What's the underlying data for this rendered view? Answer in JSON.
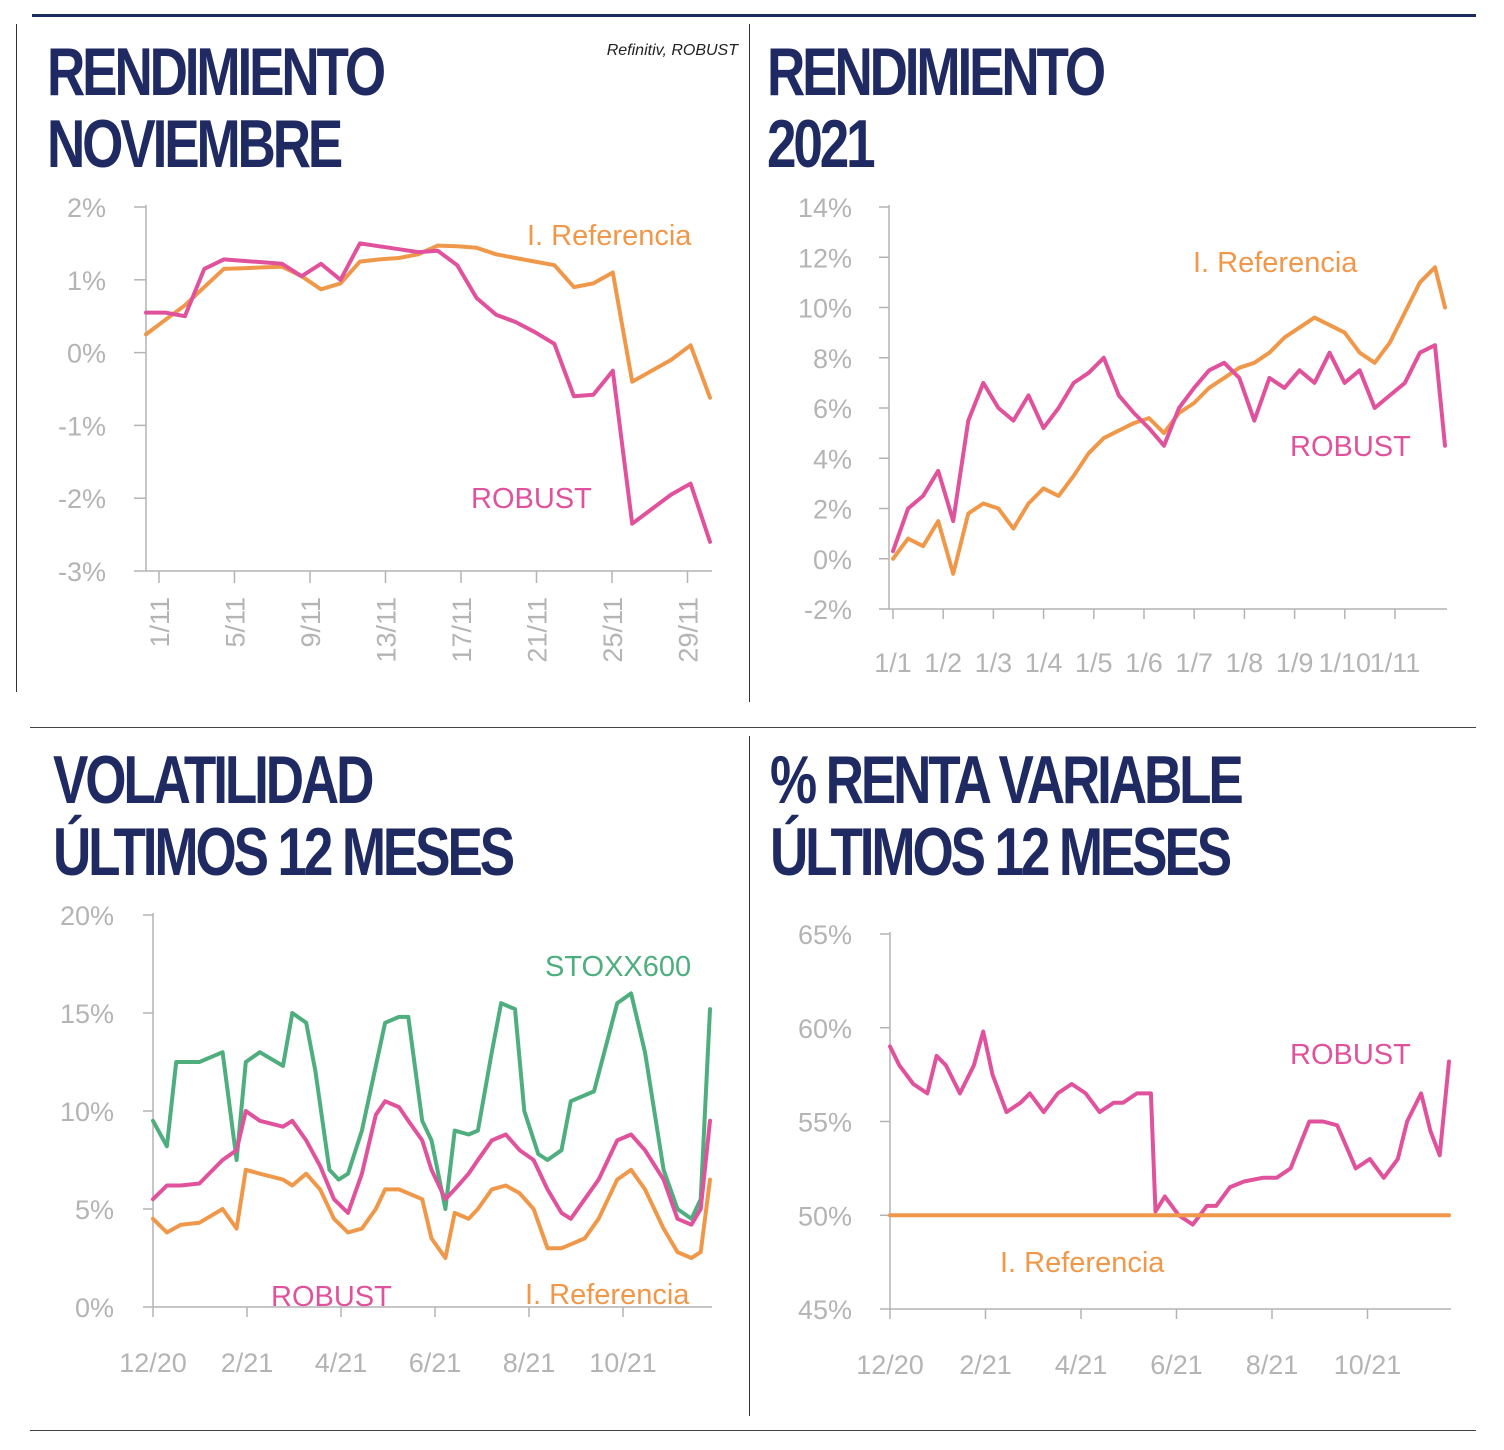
{
  "source": "Refinitiv, ROBUST",
  "colors": {
    "robust": "#e0529c",
    "referencia": "#f0984a",
    "stoxx": "#4fae7e",
    "title": "#1f2a63",
    "axis": "#b4b4b4"
  },
  "panels": [
    {
      "title_lines": [
        "RENDIMIENTO",
        "NOVIEMBRE"
      ]
    },
    {
      "title_lines": [
        "RENDIMIENTO",
        "2021"
      ]
    },
    {
      "title_lines": [
        "VOLATILIDAD",
        "ÚLTIMOS 12 MESES"
      ]
    },
    {
      "title_lines": [
        "% RENTA VARIABLE",
        "ÚLTIMOS 12 MESES"
      ]
    }
  ],
  "chart_data": [
    {
      "type": "line",
      "title": "RENDIMIENTO NOVIEMBRE",
      "x_ticks": [
        "1/11",
        "5/11",
        "9/11",
        "13/11",
        "17/11",
        "21/11",
        "25/11",
        "29/11"
      ],
      "y_ticks": [
        "2%",
        "1%",
        "0%",
        "-1%",
        "-2%",
        "-3%"
      ],
      "ylim": [
        -3,
        2
      ],
      "xlim": [
        1,
        30
      ],
      "series": [
        {
          "name": "I. Referencia",
          "x": [
            1,
            2,
            3,
            4,
            5,
            6,
            7,
            8,
            9,
            10,
            11,
            12,
            13,
            14,
            15,
            16,
            17,
            18,
            19,
            20,
            21,
            22,
            23,
            24,
            25,
            26,
            27,
            28,
            29,
            30
          ],
          "values": [
            0.25,
            0.45,
            0.65,
            0.9,
            1.15,
            1.16,
            1.17,
            1.18,
            1.05,
            0.87,
            0.95,
            1.25,
            1.28,
            1.3,
            1.35,
            1.47,
            1.46,
            1.44,
            1.35,
            1.3,
            1.25,
            1.2,
            0.9,
            0.95,
            1.1,
            -0.4,
            -0.25,
            -0.1,
            0.1,
            -0.62
          ]
        },
        {
          "name": "ROBUST",
          "x": [
            1,
            2,
            3,
            4,
            5,
            6,
            7,
            8,
            9,
            10,
            11,
            12,
            13,
            14,
            15,
            16,
            17,
            18,
            19,
            20,
            21,
            22,
            23,
            24,
            25,
            26,
            27,
            28,
            29,
            30
          ],
          "values": [
            0.55,
            0.55,
            0.5,
            1.15,
            1.28,
            1.26,
            1.24,
            1.22,
            1.05,
            1.22,
            1.0,
            1.5,
            1.46,
            1.42,
            1.38,
            1.4,
            1.2,
            0.75,
            0.52,
            0.42,
            0.28,
            0.12,
            -0.6,
            -0.58,
            -0.25,
            -2.35,
            -2.15,
            -1.95,
            -1.8,
            -2.6
          ]
        }
      ]
    },
    {
      "type": "line",
      "title": "RENDIMIENTO 2021",
      "x_ticks": [
        "1/1",
        "1/2",
        "1/3",
        "1/4",
        "1/5",
        "1/6",
        "1/7",
        "1/8",
        "1/9",
        "1/10",
        "1/11"
      ],
      "y_ticks": [
        "14%",
        "12%",
        "10%",
        "8%",
        "6%",
        "4%",
        "2%",
        "0%",
        "-2%"
      ],
      "ylim": [
        -2,
        14
      ],
      "xlim": [
        0,
        11
      ],
      "series": [
        {
          "name": "I. Referencia",
          "x": [
            0,
            0.3,
            0.6,
            0.9,
            1.2,
            1.5,
            1.8,
            2.1,
            2.4,
            2.7,
            3.0,
            3.3,
            3.6,
            3.9,
            4.2,
            4.5,
            4.8,
            5.1,
            5.4,
            5.7,
            6.0,
            6.3,
            6.6,
            6.9,
            7.2,
            7.5,
            7.8,
            8.1,
            8.4,
            8.7,
            9.0,
            9.3,
            9.6,
            9.9,
            10.2,
            10.5,
            10.8,
            11.0
          ],
          "values": [
            0,
            0.8,
            0.5,
            1.5,
            -0.6,
            1.8,
            2.2,
            2.0,
            1.2,
            2.2,
            2.8,
            2.5,
            3.3,
            4.2,
            4.8,
            5.1,
            5.4,
            5.6,
            5.0,
            5.8,
            6.2,
            6.8,
            7.2,
            7.6,
            7.8,
            8.2,
            8.8,
            9.2,
            9.6,
            9.3,
            9.0,
            8.2,
            7.8,
            8.6,
            9.8,
            11.0,
            11.6,
            10.0
          ]
        },
        {
          "name": "ROBUST",
          "x": [
            0,
            0.3,
            0.6,
            0.9,
            1.2,
            1.5,
            1.8,
            2.1,
            2.4,
            2.7,
            3.0,
            3.3,
            3.6,
            3.9,
            4.2,
            4.5,
            4.8,
            5.1,
            5.4,
            5.7,
            6.0,
            6.3,
            6.6,
            6.9,
            7.2,
            7.5,
            7.8,
            8.1,
            8.4,
            8.7,
            9.0,
            9.3,
            9.6,
            9.9,
            10.2,
            10.5,
            10.8,
            11.0
          ],
          "values": [
            0.3,
            2.0,
            2.5,
            3.5,
            1.5,
            5.5,
            7.0,
            6.0,
            5.5,
            6.5,
            5.2,
            6.0,
            7.0,
            7.4,
            8.0,
            6.5,
            5.8,
            5.2,
            4.5,
            6.0,
            6.8,
            7.5,
            7.8,
            7.2,
            5.5,
            7.2,
            6.8,
            7.5,
            7.0,
            8.2,
            7.0,
            7.5,
            6.0,
            6.5,
            7.0,
            8.2,
            8.5,
            4.5
          ]
        }
      ]
    },
    {
      "type": "line",
      "title": "VOLATILIDAD ÚLTIMOS 12 MESES",
      "x_ticks": [
        "12/20",
        "2/21",
        "4/21",
        "6/21",
        "8/21",
        "10/21"
      ],
      "y_ticks": [
        "20%",
        "15%",
        "10%",
        "5%",
        "0%"
      ],
      "ylim": [
        0,
        20
      ],
      "xlim": [
        0,
        12
      ],
      "series": [
        {
          "name": "STOXX600",
          "x": [
            0,
            0.3,
            0.5,
            1.0,
            1.5,
            1.8,
            2.0,
            2.3,
            2.8,
            3.0,
            3.3,
            3.5,
            3.8,
            4.0,
            4.2,
            4.5,
            5.0,
            5.3,
            5.5,
            5.8,
            6.0,
            6.3,
            6.5,
            6.8,
            7.0,
            7.3,
            7.5,
            7.8,
            8.0,
            8.3,
            8.5,
            8.8,
            9.0,
            9.5,
            10.0,
            10.3,
            10.6,
            11.0,
            11.3,
            11.6,
            11.8,
            12.0
          ],
          "values": [
            9.5,
            8.2,
            12.5,
            12.5,
            13.0,
            7.5,
            12.5,
            13.0,
            12.3,
            15.0,
            14.5,
            12.0,
            7.0,
            6.5,
            6.8,
            9.0,
            14.5,
            14.8,
            14.8,
            9.5,
            8.5,
            5.0,
            9.0,
            8.8,
            9.0,
            13.0,
            15.5,
            15.2,
            10.0,
            7.8,
            7.5,
            8.0,
            10.5,
            11.0,
            15.5,
            16.0,
            13.0,
            7.0,
            5.0,
            4.5,
            5.5,
            15.2
          ]
        },
        {
          "name": "ROBUST",
          "x": [
            0,
            0.3,
            0.6,
            1.0,
            1.5,
            1.8,
            2.0,
            2.3,
            2.8,
            3.0,
            3.3,
            3.6,
            3.9,
            4.2,
            4.5,
            4.8,
            5.0,
            5.3,
            5.5,
            5.8,
            6.0,
            6.3,
            6.5,
            6.8,
            7.0,
            7.3,
            7.6,
            7.9,
            8.2,
            8.5,
            8.8,
            9.0,
            9.3,
            9.6,
            10.0,
            10.3,
            10.6,
            11.0,
            11.3,
            11.6,
            11.8,
            12.0
          ],
          "values": [
            5.5,
            6.2,
            6.2,
            6.3,
            7.5,
            8.0,
            10.0,
            9.5,
            9.2,
            9.5,
            8.5,
            7.2,
            5.5,
            4.8,
            6.8,
            9.8,
            10.5,
            10.2,
            9.5,
            8.5,
            7.0,
            5.5,
            6.0,
            6.8,
            7.5,
            8.5,
            8.8,
            8.0,
            7.5,
            6.0,
            4.8,
            4.5,
            5.5,
            6.5,
            8.5,
            8.8,
            8.0,
            6.5,
            4.5,
            4.2,
            5.0,
            9.5
          ]
        },
        {
          "name": "I. Referencia",
          "x": [
            0,
            0.3,
            0.6,
            1.0,
            1.5,
            1.8,
            2.0,
            2.3,
            2.8,
            3.0,
            3.3,
            3.6,
            3.9,
            4.2,
            4.5,
            4.8,
            5.0,
            5.3,
            5.5,
            5.8,
            6.0,
            6.3,
            6.5,
            6.8,
            7.0,
            7.3,
            7.6,
            7.9,
            8.2,
            8.5,
            8.8,
            9.0,
            9.3,
            9.6,
            10.0,
            10.3,
            10.6,
            11.0,
            11.3,
            11.6,
            11.8,
            12.0
          ],
          "values": [
            4.5,
            3.8,
            4.2,
            4.3,
            5.0,
            4.0,
            7.0,
            6.8,
            6.5,
            6.2,
            6.8,
            6.0,
            4.5,
            3.8,
            4.0,
            5.0,
            6.0,
            6.0,
            5.8,
            5.5,
            3.5,
            2.5,
            4.8,
            4.5,
            5.0,
            6.0,
            6.2,
            5.8,
            5.0,
            3.0,
            3.0,
            3.2,
            3.5,
            4.5,
            6.5,
            7.0,
            6.0,
            4.0,
            2.8,
            2.5,
            2.8,
            6.5
          ]
        }
      ]
    },
    {
      "type": "line",
      "title": "% RENTA VARIABLE ÚLTIMOS 12 MESES",
      "x_ticks": [
        "12/20",
        "2/21",
        "4/21",
        "6/21",
        "8/21",
        "10/21"
      ],
      "y_ticks": [
        "65%",
        "60%",
        "55%",
        "50%",
        "45%"
      ],
      "ylim": [
        45,
        65
      ],
      "xlim": [
        0,
        12
      ],
      "series": [
        {
          "name": "ROBUST",
          "x": [
            0,
            0.2,
            0.5,
            0.8,
            1.0,
            1.2,
            1.5,
            1.8,
            2.0,
            2.2,
            2.5,
            2.8,
            3.0,
            3.3,
            3.6,
            3.9,
            4.2,
            4.5,
            4.8,
            5.0,
            5.3,
            5.6,
            5.7,
            5.9,
            6.2,
            6.5,
            6.8,
            7.0,
            7.3,
            7.6,
            8.0,
            8.3,
            8.6,
            9.0,
            9.3,
            9.6,
            10.0,
            10.3,
            10.6,
            10.9,
            11.1,
            11.4,
            11.6,
            11.8,
            12.0
          ],
          "values": [
            59.0,
            58.0,
            57.0,
            56.5,
            58.5,
            58.0,
            56.5,
            58.0,
            59.8,
            57.5,
            55.5,
            56.0,
            56.5,
            55.5,
            56.5,
            57.0,
            56.5,
            55.5,
            56.0,
            56.0,
            56.5,
            56.5,
            50.2,
            51.0,
            50.0,
            49.5,
            50.5,
            50.5,
            51.5,
            51.8,
            52.0,
            52.0,
            52.5,
            55.0,
            55.0,
            54.8,
            52.5,
            53.0,
            52.0,
            53.0,
            55.0,
            56.5,
            54.5,
            53.2,
            58.2
          ]
        },
        {
          "name": "I. Referencia",
          "x": [
            0,
            12
          ],
          "values": [
            50,
            50
          ]
        }
      ]
    }
  ],
  "series_labels": {
    "c1_ref": "I. Referencia",
    "c1_robust": "ROBUST",
    "c2_ref": "I. Referencia",
    "c2_robust": "ROBUST",
    "c3_stoxx": "STOXX600",
    "c3_robust": "ROBUST",
    "c3_ref": "I. Referencia",
    "c4_robust": "ROBUST",
    "c4_ref": "I.  Referencia"
  }
}
